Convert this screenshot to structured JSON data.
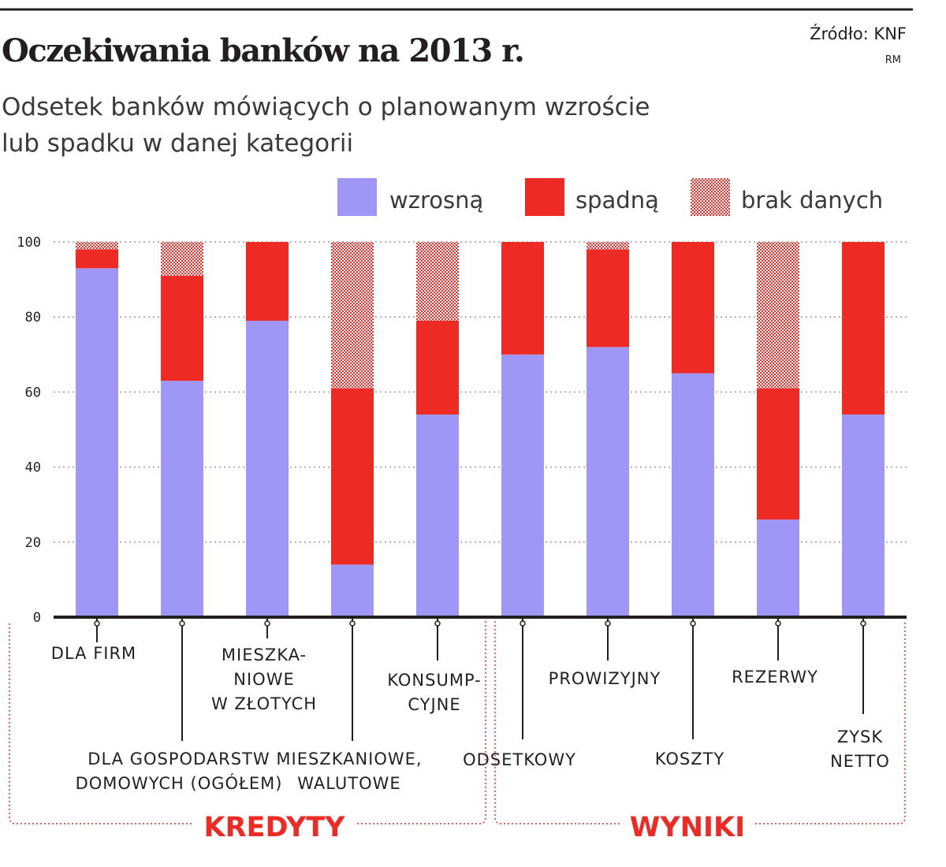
{
  "header": {
    "title": "Oczekiwania banków na 2013 r.",
    "subtitle_line1": "Odsetek banków mówiących o planowanym wzroście",
    "subtitle_line2": "lub spadku w danej kategorii",
    "source": "Źródło: KNF",
    "author": "RM"
  },
  "colors": {
    "wzrosna": "#a096f5",
    "spadna": "#ee2a24",
    "brak": "#ee2a24",
    "grid": "#9a9a9a",
    "axis": "#231f20"
  },
  "chart_data": {
    "type": "bar",
    "stacked": true,
    "ylim": [
      0,
      100
    ],
    "yticks": [
      "0",
      "20",
      "40",
      "60",
      "80",
      "100"
    ],
    "grid": true,
    "legend_position": "top-right",
    "categories": [
      "DLA FIRM",
      "DLA GOSPODARSTW DOMOWYCH (OGÓŁEM)",
      "MIESZKA-NIOWE W ZŁOTYCH",
      "MIESZKANIOWE, WALUTOWE",
      "KONSUMP-CYJNE",
      "ODSETKOWY",
      "PROWIZYJNY",
      "KOSZTY",
      "REZERWY",
      "ZYSK NETTO"
    ],
    "category_label_lines": [
      [
        "DLA FIRM"
      ],
      [
        "DLA GOSPODARSTW",
        "DOMOWYCH (OGÓŁEM)"
      ],
      [
        "MIESZKA-",
        "NIOWE",
        "W ZŁOTYCH"
      ],
      [
        "MIESZKANIOWE,",
        "WALUTOWE"
      ],
      [
        "KONSUMP-",
        "CYJNE"
      ],
      [
        "ODSETKOWY"
      ],
      [
        "PROWIZYJNY"
      ],
      [
        "KOSZTY"
      ],
      [
        "REZERWY"
      ],
      [
        "ZYSK",
        "NETTO"
      ]
    ],
    "series": [
      {
        "name": "wzrosną",
        "values": [
          93,
          63,
          79,
          14,
          54,
          70,
          72,
          65,
          26,
          54
        ]
      },
      {
        "name": "spadną",
        "values": [
          5,
          28,
          21,
          47,
          25,
          30,
          26,
          35,
          35,
          46
        ]
      },
      {
        "name": "brak danych",
        "values": [
          2,
          9,
          0,
          39,
          21,
          0,
          2,
          0,
          39,
          0
        ]
      }
    ],
    "groups": [
      {
        "name": "KREDYTY",
        "categories": [
          0,
          1,
          2,
          3,
          4
        ]
      },
      {
        "name": "WYNIKI",
        "categories": [
          5,
          6,
          7,
          8,
          9
        ]
      }
    ]
  }
}
